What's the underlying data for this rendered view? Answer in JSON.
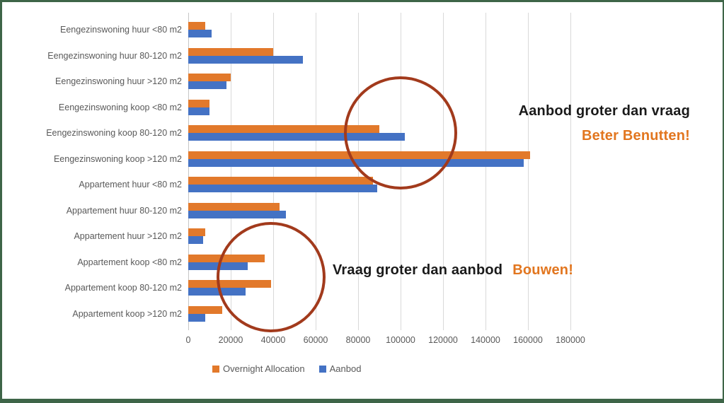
{
  "chart_data": {
    "type": "bar",
    "orientation": "horizontal",
    "categories": [
      "Eengezinswoning huur <80 m2",
      "Eengezinswoning huur 80-120 m2",
      "Eengezinswoning huur >120 m2",
      "Eengezinswoning koop <80 m2",
      "Eengezinswoning koop 80-120 m2",
      "Eengezinswoning koop >120 m2",
      "Appartement huur <80 m2",
      "Appartement huur 80-120 m2",
      "Appartement huur >120 m2",
      "Appartement koop <80 m2",
      "Appartement koop 80-120 m2",
      "Appartement koop >120 m2"
    ],
    "series": [
      {
        "name": "Overnight Allocation",
        "color": "#E2792B",
        "values": [
          8000,
          40000,
          20000,
          10000,
          90000,
          161000,
          87000,
          43000,
          8000,
          36000,
          39000,
          16000
        ]
      },
      {
        "name": "Aanbod",
        "color": "#4472C4",
        "values": [
          11000,
          54000,
          18000,
          10000,
          102000,
          158000,
          89000,
          46000,
          7000,
          28000,
          27000,
          8000
        ]
      }
    ],
    "x_ticks": [
      0,
      20000,
      40000,
      60000,
      80000,
      100000,
      120000,
      140000,
      160000,
      180000
    ],
    "xlim": [
      0,
      180000
    ],
    "grid": true,
    "legend_position": "bottom",
    "title": "",
    "xlabel": "",
    "ylabel": ""
  },
  "annotations": {
    "supply": {
      "line1": "Aanbod groter dan vraag",
      "line2": "Beter Benutten!"
    },
    "demand": {
      "line1": "Vraag groter dan aanbod",
      "line2": "Bouwen!"
    },
    "circle_color": "#A23A1C",
    "highlight_text_color": "#E2761F",
    "text_color": "#1a1a1a"
  },
  "colors": {
    "frame_border": "#3E6548",
    "axis_text": "#595959",
    "gridline": "#D9D9D9"
  }
}
